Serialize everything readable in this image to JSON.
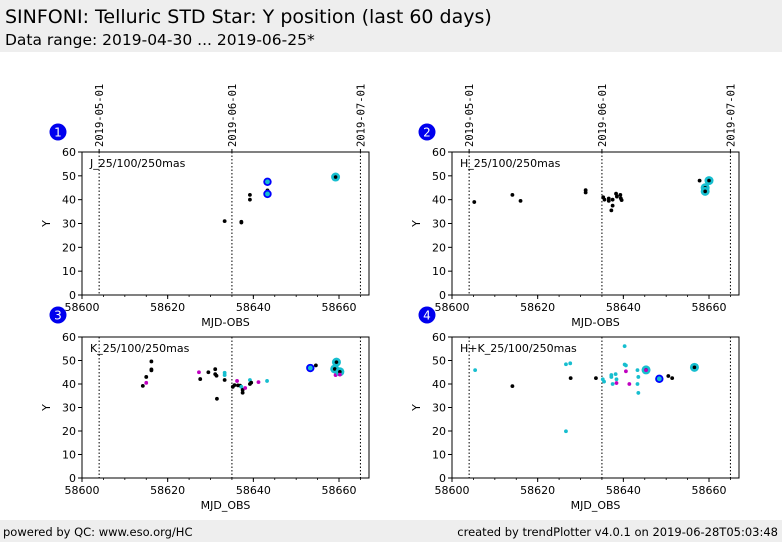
{
  "header": {
    "title": "SINFONI: Telluric STD Star: Y position (last 60 days)",
    "subtitle": "Data range: 2019-04-30 ... 2019-06-25*"
  },
  "footer": {
    "left": "powered by QC: www.eso.org/HC",
    "right": "created by trendPlotter v4.0.1 on 2019-06-28T05:03:48"
  },
  "colors": {
    "black": "#000000",
    "cyan": "#17becf",
    "magenta": "#c000c0",
    "blue": "#0000ff",
    "badge": "#0000ee",
    "header_bg": "#eeeeee"
  },
  "chart_data": [
    {
      "type": "scatter",
      "badge": "1",
      "label": "J_25/100/250mas",
      "xlabel": "MJD-OBS",
      "ylabel": "Y",
      "xlim": [
        58600,
        58667
      ],
      "ylim": [
        0,
        60
      ],
      "xticks": [
        58600,
        58620,
        58640,
        58660
      ],
      "yticks": [
        0,
        10,
        20,
        30,
        40,
        50,
        60
      ],
      "date_ticks": [
        {
          "mjd": 58604,
          "label": "2019-05-01"
        },
        {
          "mjd": 58635,
          "label": "2019-06-01"
        },
        {
          "mjd": 58665,
          "label": "2019-07-01"
        }
      ],
      "points": [
        {
          "x": 58633.3,
          "y": 31.0,
          "c": "black",
          "s": "small"
        },
        {
          "x": 58637.2,
          "y": 30.7,
          "c": "black",
          "s": "small"
        },
        {
          "x": 58637.2,
          "y": 30.4,
          "c": "black",
          "s": "small"
        },
        {
          "x": 58639.2,
          "y": 42.0,
          "c": "black",
          "s": "small"
        },
        {
          "x": 58639.2,
          "y": 40.0,
          "c": "black",
          "s": "small"
        },
        {
          "x": 58643.3,
          "y": 47.5,
          "c": "cyan",
          "s": "ring"
        },
        {
          "x": 58643.3,
          "y": 43.9,
          "c": "black",
          "s": "small"
        },
        {
          "x": 58643.3,
          "y": 42.4,
          "c": "cyan",
          "s": "ring"
        },
        {
          "x": 58659.2,
          "y": 49.5,
          "c": "cyan",
          "s": "big"
        }
      ]
    },
    {
      "type": "scatter",
      "badge": "2",
      "label": "H_25/100/250mas",
      "xlabel": "MJD-OBS",
      "ylabel": "Y",
      "xlim": [
        58600,
        58667
      ],
      "ylim": [
        0,
        60
      ],
      "xticks": [
        58600,
        58620,
        58640,
        58660
      ],
      "yticks": [
        0,
        10,
        20,
        30,
        40,
        50,
        60
      ],
      "date_ticks": [
        {
          "mjd": 58604,
          "label": "2019-05-01"
        },
        {
          "mjd": 58635,
          "label": "2019-06-01"
        },
        {
          "mjd": 58665,
          "label": "2019-07-01"
        }
      ],
      "points": [
        {
          "x": 58605.2,
          "y": 39.0,
          "c": "black",
          "s": "small"
        },
        {
          "x": 58614.1,
          "y": 42.0,
          "c": "black",
          "s": "small"
        },
        {
          "x": 58616.0,
          "y": 39.5,
          "c": "black",
          "s": "small"
        },
        {
          "x": 58631.2,
          "y": 44.0,
          "c": "black",
          "s": "small"
        },
        {
          "x": 58631.2,
          "y": 43.0,
          "c": "black",
          "s": "small"
        },
        {
          "x": 58635.3,
          "y": 41.0,
          "c": "black",
          "s": "small"
        },
        {
          "x": 58635.6,
          "y": 40.0,
          "c": "black",
          "s": "small"
        },
        {
          "x": 58636.6,
          "y": 40.5,
          "c": "black",
          "s": "small"
        },
        {
          "x": 58636.6,
          "y": 39.5,
          "c": "black",
          "s": "small"
        },
        {
          "x": 58637.5,
          "y": 40.0,
          "c": "black",
          "s": "small"
        },
        {
          "x": 58637.5,
          "y": 37.5,
          "c": "black",
          "s": "small"
        },
        {
          "x": 58637.2,
          "y": 35.5,
          "c": "black",
          "s": "small"
        },
        {
          "x": 58638.3,
          "y": 42.5,
          "c": "black",
          "s": "small"
        },
        {
          "x": 58638.5,
          "y": 41.3,
          "c": "black",
          "s": "small"
        },
        {
          "x": 58639.3,
          "y": 42.0,
          "c": "black",
          "s": "small"
        },
        {
          "x": 58639.4,
          "y": 40.6,
          "c": "black",
          "s": "small"
        },
        {
          "x": 58639.6,
          "y": 39.8,
          "c": "black",
          "s": "small"
        },
        {
          "x": 58657.8,
          "y": 48.0,
          "c": "black",
          "s": "small"
        },
        {
          "x": 58660.0,
          "y": 48.0,
          "c": "cyan",
          "s": "big"
        },
        {
          "x": 58659.1,
          "y": 45.0,
          "c": "cyan",
          "s": "big"
        },
        {
          "x": 58659.1,
          "y": 43.5,
          "c": "cyan",
          "s": "big"
        }
      ]
    },
    {
      "type": "scatter",
      "badge": "3",
      "label": "K_25/100/250mas",
      "xlabel": "MJD_OBS",
      "ylabel": "Y",
      "xlim": [
        58600,
        58667
      ],
      "ylim": [
        0,
        60
      ],
      "xticks": [
        58600,
        58620,
        58640,
        58660
      ],
      "yticks": [
        0,
        10,
        20,
        30,
        40,
        50,
        60
      ],
      "date_ticks": [
        {
          "mjd": 58604,
          "label": "2019-05-01"
        },
        {
          "mjd": 58635,
          "label": "2019-06-01"
        },
        {
          "mjd": 58665,
          "label": "2019-07-01"
        }
      ],
      "points": [
        {
          "x": 58614.2,
          "y": 39.2,
          "c": "black",
          "s": "small"
        },
        {
          "x": 58615.0,
          "y": 43.0,
          "c": "black",
          "s": "small"
        },
        {
          "x": 58615.0,
          "y": 40.5,
          "c": "magenta",
          "s": "small"
        },
        {
          "x": 58616.2,
          "y": 49.6,
          "c": "black",
          "s": "small"
        },
        {
          "x": 58616.2,
          "y": 46.2,
          "c": "black",
          "s": "small"
        },
        {
          "x": 58616.2,
          "y": 45.8,
          "c": "black",
          "s": "small"
        },
        {
          "x": 58627.3,
          "y": 45.0,
          "c": "magenta",
          "s": "small"
        },
        {
          "x": 58627.6,
          "y": 42.1,
          "c": "black",
          "s": "small"
        },
        {
          "x": 58629.5,
          "y": 45.0,
          "c": "black",
          "s": "small"
        },
        {
          "x": 58631.1,
          "y": 46.3,
          "c": "black",
          "s": "small"
        },
        {
          "x": 58631.1,
          "y": 44.2,
          "c": "black",
          "s": "small"
        },
        {
          "x": 58631.4,
          "y": 43.5,
          "c": "black",
          "s": "small"
        },
        {
          "x": 58631.5,
          "y": 33.7,
          "c": "black",
          "s": "small"
        },
        {
          "x": 58633.3,
          "y": 44.8,
          "c": "cyan",
          "s": "small"
        },
        {
          "x": 58633.3,
          "y": 43.8,
          "c": "cyan",
          "s": "small"
        },
        {
          "x": 58633.3,
          "y": 41.7,
          "c": "black",
          "s": "small"
        },
        {
          "x": 58635.2,
          "y": 38.8,
          "c": "black",
          "s": "small"
        },
        {
          "x": 58635.6,
          "y": 39.5,
          "c": "black",
          "s": "small"
        },
        {
          "x": 58636.2,
          "y": 41.3,
          "c": "magenta",
          "s": "small"
        },
        {
          "x": 58636.4,
          "y": 39.4,
          "c": "black",
          "s": "small"
        },
        {
          "x": 58636.9,
          "y": 39.3,
          "c": "black",
          "s": "small"
        },
        {
          "x": 58637.2,
          "y": 38.8,
          "c": "cyan",
          "s": "small"
        },
        {
          "x": 58637.5,
          "y": 37.5,
          "c": "black",
          "s": "small"
        },
        {
          "x": 58637.5,
          "y": 36.3,
          "c": "black",
          "s": "small"
        },
        {
          "x": 58638.1,
          "y": 38.3,
          "c": "magenta",
          "s": "small"
        },
        {
          "x": 58639.2,
          "y": 41.7,
          "c": "cyan",
          "s": "small"
        },
        {
          "x": 58639.2,
          "y": 40.0,
          "c": "black",
          "s": "small"
        },
        {
          "x": 58639.5,
          "y": 40.6,
          "c": "black",
          "s": "small"
        },
        {
          "x": 58641.2,
          "y": 40.8,
          "c": "magenta",
          "s": "small"
        },
        {
          "x": 58643.2,
          "y": 41.3,
          "c": "cyan",
          "s": "small"
        },
        {
          "x": 58653.3,
          "y": 46.8,
          "c": "cyan",
          "s": "ring"
        },
        {
          "x": 58654.6,
          "y": 47.9,
          "c": "black",
          "s": "small"
        },
        {
          "x": 58659.4,
          "y": 49.3,
          "c": "cyan",
          "s": "big"
        },
        {
          "x": 58659.0,
          "y": 46.4,
          "c": "cyan",
          "s": "big"
        },
        {
          "x": 58659.2,
          "y": 43.8,
          "c": "magenta",
          "s": "small"
        },
        {
          "x": 58660.2,
          "y": 45.2,
          "c": "cyan",
          "s": "big"
        },
        {
          "x": 58660.2,
          "y": 44.0,
          "c": "magenta",
          "s": "small"
        }
      ]
    },
    {
      "type": "scatter",
      "badge": "4",
      "label": "H+K_25/100/250mas",
      "xlabel": "MJD_OBS",
      "ylabel": "Y",
      "xlim": [
        58600,
        58667
      ],
      "ylim": [
        0,
        60
      ],
      "xticks": [
        58600,
        58620,
        58640,
        58660
      ],
      "yticks": [
        0,
        10,
        20,
        30,
        40,
        50,
        60
      ],
      "date_ticks": [
        {
          "mjd": 58604,
          "label": "2019-05-01"
        },
        {
          "mjd": 58635,
          "label": "2019-06-01"
        },
        {
          "mjd": 58665,
          "label": "2019-07-01"
        }
      ],
      "points": [
        {
          "x": 58605.4,
          "y": 45.9,
          "c": "cyan",
          "s": "small"
        },
        {
          "x": 58614.1,
          "y": 39.1,
          "c": "black",
          "s": "small"
        },
        {
          "x": 58626.6,
          "y": 48.4,
          "c": "cyan",
          "s": "small"
        },
        {
          "x": 58627.6,
          "y": 48.8,
          "c": "cyan",
          "s": "small"
        },
        {
          "x": 58626.6,
          "y": 19.9,
          "c": "cyan",
          "s": "small"
        },
        {
          "x": 58627.7,
          "y": 42.5,
          "c": "black",
          "s": "small"
        },
        {
          "x": 58633.6,
          "y": 42.5,
          "c": "black",
          "s": "small"
        },
        {
          "x": 58635.2,
          "y": 42.0,
          "c": "cyan",
          "s": "small"
        },
        {
          "x": 58635.5,
          "y": 41.0,
          "c": "cyan",
          "s": "small"
        },
        {
          "x": 58637.2,
          "y": 43.8,
          "c": "cyan",
          "s": "small"
        },
        {
          "x": 58637.2,
          "y": 43.0,
          "c": "cyan",
          "s": "small"
        },
        {
          "x": 58637.5,
          "y": 40.0,
          "c": "cyan",
          "s": "small"
        },
        {
          "x": 58638.2,
          "y": 44.2,
          "c": "cyan",
          "s": "small"
        },
        {
          "x": 58638.4,
          "y": 42.0,
          "c": "cyan",
          "s": "small"
        },
        {
          "x": 58638.4,
          "y": 40.4,
          "c": "magenta",
          "s": "small"
        },
        {
          "x": 58640.3,
          "y": 56.1,
          "c": "cyan",
          "s": "small"
        },
        {
          "x": 58640.3,
          "y": 48.3,
          "c": "cyan",
          "s": "small"
        },
        {
          "x": 58640.6,
          "y": 47.9,
          "c": "cyan",
          "s": "small"
        },
        {
          "x": 58640.6,
          "y": 45.4,
          "c": "magenta",
          "s": "small"
        },
        {
          "x": 58641.4,
          "y": 40.0,
          "c": "magenta",
          "s": "small"
        },
        {
          "x": 58643.3,
          "y": 45.9,
          "c": "cyan",
          "s": "small"
        },
        {
          "x": 58643.5,
          "y": 43.0,
          "c": "cyan",
          "s": "small"
        },
        {
          "x": 58643.3,
          "y": 40.0,
          "c": "cyan",
          "s": "small"
        },
        {
          "x": 58643.5,
          "y": 36.2,
          "c": "cyan",
          "s": "small"
        },
        {
          "x": 58645.3,
          "y": 46.0,
          "c": "cyan",
          "s": "big"
        },
        {
          "x": 58645.3,
          "y": 45.9,
          "c": "magenta",
          "s": "small"
        },
        {
          "x": 58648.4,
          "y": 42.2,
          "c": "cyan",
          "s": "ring"
        },
        {
          "x": 58650.5,
          "y": 43.4,
          "c": "black",
          "s": "small"
        },
        {
          "x": 58651.4,
          "y": 42.5,
          "c": "black",
          "s": "small"
        },
        {
          "x": 58656.6,
          "y": 47.1,
          "c": "cyan",
          "s": "big"
        }
      ]
    }
  ]
}
